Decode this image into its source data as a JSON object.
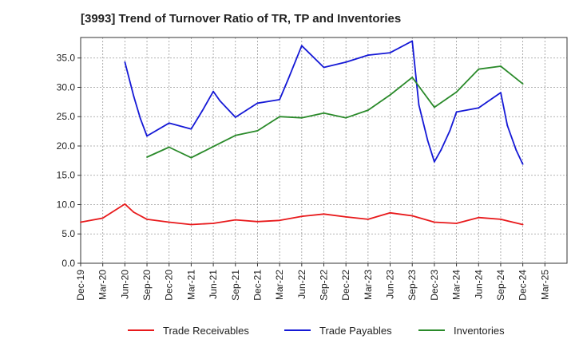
{
  "title": "[3993]  Trend of Turnover Ratio of TR, TP and Inventories",
  "chart_data": {
    "type": "line",
    "title": "[3993]  Trend of Turnover Ratio of TR, TP and Inventories",
    "xlabel": "",
    "ylabel": "",
    "x_tick_labels": [
      "Dec-19",
      "Mar-20",
      "Jun-20",
      "Sep-20",
      "Dec-20",
      "Mar-21",
      "Jun-21",
      "Sep-21",
      "Dec-21",
      "Mar-22",
      "Jun-22",
      "Sep-22",
      "Dec-22",
      "Mar-23",
      "Jun-23",
      "Sep-23",
      "Dec-23",
      "Mar-24",
      "Jun-24",
      "Sep-24",
      "Dec-24",
      "Mar-25"
    ],
    "y_ticks": [
      "0.0",
      "5.0",
      "10.0",
      "15.0",
      "20.0",
      "25.0",
      "30.0",
      "35.0"
    ],
    "ylim": [
      0,
      38.5
    ],
    "grid": true,
    "legend_position": "bottom",
    "series": [
      {
        "name": "Trade Receivables",
        "color": "#e8191b",
        "points": [
          [
            0,
            7.0
          ],
          [
            1,
            7.7
          ],
          [
            2,
            10.1
          ],
          [
            2.4,
            8.7
          ],
          [
            3,
            7.5
          ],
          [
            4,
            7.0
          ],
          [
            5,
            6.6
          ],
          [
            6,
            6.8
          ],
          [
            7,
            7.4
          ],
          [
            8,
            7.1
          ],
          [
            9,
            7.3
          ],
          [
            10,
            8.0
          ],
          [
            11,
            8.4
          ],
          [
            12,
            7.9
          ],
          [
            13,
            7.5
          ],
          [
            14,
            8.6
          ],
          [
            15,
            8.1
          ],
          [
            16,
            7.0
          ],
          [
            17,
            6.8
          ],
          [
            18,
            7.8
          ],
          [
            19,
            7.5
          ],
          [
            20,
            6.6
          ]
        ]
      },
      {
        "name": "Trade Payables",
        "color": "#1519d6",
        "points": [
          [
            2,
            34.3
          ],
          [
            2.4,
            28.5
          ],
          [
            2.7,
            24.7
          ],
          [
            3,
            21.7
          ],
          [
            4,
            23.9
          ],
          [
            5,
            22.9
          ],
          [
            5.5,
            26.0
          ],
          [
            6,
            29.3
          ],
          [
            6.3,
            27.7
          ],
          [
            7,
            24.9
          ],
          [
            8,
            27.3
          ],
          [
            9,
            27.9
          ],
          [
            9.4,
            31.5
          ],
          [
            10,
            37.1
          ],
          [
            11,
            33.4
          ],
          [
            12,
            34.3
          ],
          [
            13,
            35.5
          ],
          [
            14,
            35.9
          ],
          [
            15,
            37.9
          ],
          [
            15.3,
            27.0
          ],
          [
            15.7,
            20.9
          ],
          [
            16,
            17.3
          ],
          [
            16.3,
            19.3
          ],
          [
            16.7,
            22.6
          ],
          [
            17,
            25.8
          ],
          [
            18,
            26.5
          ],
          [
            19,
            29.1
          ],
          [
            19.3,
            23.5
          ],
          [
            19.7,
            19.3
          ],
          [
            20,
            16.9
          ]
        ]
      },
      {
        "name": "Inventories",
        "color": "#2a8a2a",
        "points": [
          [
            3,
            18.1
          ],
          [
            4,
            19.8
          ],
          [
            5,
            18.0
          ],
          [
            6,
            19.9
          ],
          [
            7,
            21.8
          ],
          [
            8,
            22.6
          ],
          [
            9,
            25.0
          ],
          [
            10,
            24.8
          ],
          [
            11,
            25.6
          ],
          [
            12,
            24.8
          ],
          [
            13,
            26.1
          ],
          [
            14,
            28.7
          ],
          [
            15,
            31.7
          ],
          [
            16,
            26.6
          ],
          [
            17,
            29.2
          ],
          [
            18,
            33.1
          ],
          [
            19,
            33.6
          ],
          [
            20,
            30.6
          ]
        ]
      }
    ]
  }
}
